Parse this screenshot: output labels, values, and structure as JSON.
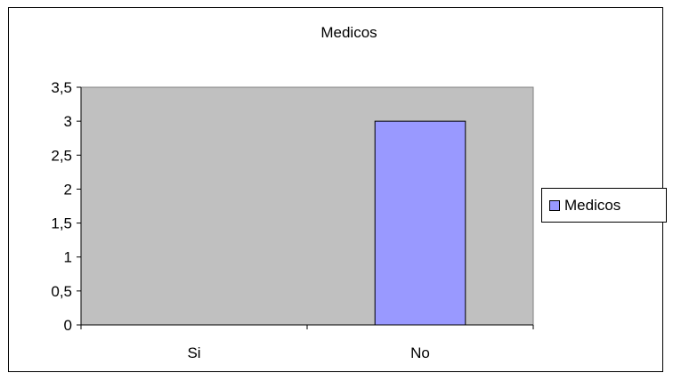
{
  "chart_data": {
    "type": "bar",
    "title": "Medicos",
    "categories": [
      "Si",
      "No"
    ],
    "series": [
      {
        "name": "Medicos",
        "values": [
          0,
          3
        ],
        "color": "#9999ff"
      }
    ],
    "ylim": [
      0,
      3.5
    ],
    "yticks": [
      "0",
      "0,5",
      "1",
      "1,5",
      "2",
      "2,5",
      "3",
      "3,5"
    ],
    "xlabel": "",
    "ylabel": "",
    "grid": false,
    "plot_background": "#c0c0c0",
    "legend_position": "right"
  }
}
